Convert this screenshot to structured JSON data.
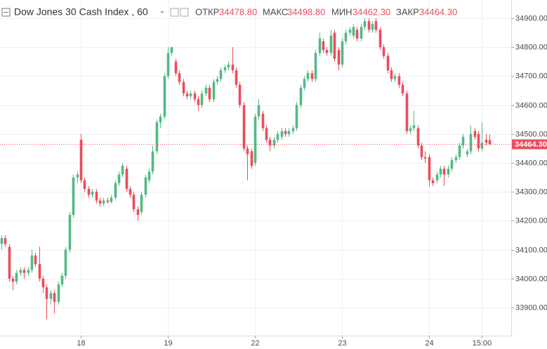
{
  "chart_data": {
    "type": "candlestick",
    "title": "Dow Jones 30 Cash Index , 60",
    "ohlc_legend": [
      {
        "label": "ОТКР",
        "value": "34478.80"
      },
      {
        "label": "МАКС",
        "value": "34498.80"
      },
      {
        "label": "МИН",
        "value": "34462.30"
      },
      {
        "label": "ЗАКР",
        "value": "34464.30"
      }
    ],
    "categories": [
      null,
      null,
      null,
      null,
      null,
      null,
      null,
      null,
      null,
      null,
      null,
      null,
      null,
      null,
      null,
      null,
      null,
      null,
      null,
      null,
      null,
      "18",
      null,
      null,
      null,
      null,
      null,
      null,
      null,
      null,
      null,
      null,
      null,
      null,
      null,
      null,
      null,
      null,
      null,
      null,
      null,
      null,
      null,
      null,
      "19",
      null,
      null,
      null,
      null,
      null,
      null,
      null,
      null,
      null,
      null,
      null,
      null,
      null,
      null,
      null,
      null,
      null,
      null,
      null,
      null,
      null,
      null,
      "22",
      null,
      null,
      null,
      null,
      null,
      null,
      null,
      null,
      null,
      null,
      null,
      null,
      null,
      null,
      null,
      null,
      null,
      null,
      null,
      null,
      null,
      null,
      "23",
      null,
      null,
      null,
      null,
      null,
      null,
      null,
      null,
      null,
      null,
      null,
      null,
      null,
      null,
      null,
      null,
      null,
      null,
      null,
      null,
      null,
      null,
      "24",
      null,
      null,
      null,
      null,
      null,
      null,
      null,
      null,
      null,
      null,
      null,
      null,
      null,
      "15:00",
      null,
      null
    ],
    "open": [
      34120,
      34140,
      34110,
      34000,
      33990,
      34020,
      34030,
      34020,
      34030,
      34080,
      34050,
      34000,
      33970,
      33930,
      33950,
      33920,
      33980,
      34010,
      34100,
      34220,
      34350,
      34480,
      34340,
      34310,
      34290,
      34300,
      34270,
      34260,
      34270,
      34265,
      34280,
      34330,
      34360,
      34380,
      34310,
      34290,
      34240,
      34230,
      34290,
      34340,
      34370,
      34440,
      34540,
      34560,
      34700,
      34780,
      34750,
      34710,
      34680,
      34640,
      34630,
      34640,
      34620,
      34600,
      34640,
      34660,
      34620,
      34680,
      34690,
      34720,
      34730,
      34740,
      34720,
      34670,
      34600,
      34450,
      34440,
      34400,
      34560,
      34570,
      34520,
      34480,
      34460,
      34480,
      34490,
      34510,
      34500,
      34510,
      34520,
      34600,
      34660,
      34690,
      34710,
      34690,
      34780,
      34820,
      34790,
      34780,
      34850,
      34790,
      34740,
      34820,
      34850,
      34840,
      34860,
      34830,
      34870,
      34890,
      34860,
      34890,
      34860,
      34800,
      34770,
      34720,
      34690,
      34700,
      34670,
      34640,
      34510,
      34520,
      34520,
      34460,
      34420,
      34420,
      34340,
      34340,
      34360,
      34380,
      34360,
      34380,
      34410,
      34420,
      34460,
      34430,
      34440,
      34510,
      34500,
      34450,
      34480,
      34478.8
    ],
    "high": [
      34150,
      34150,
      34120,
      34010,
      34030,
      34040,
      34040,
      34040,
      34100,
      34090,
      34110,
      34010,
      33980,
      33960,
      33960,
      33990,
      34020,
      34110,
      34230,
      34360,
      34370,
      34500,
      34350,
      34320,
      34310,
      34310,
      34280,
      34280,
      34280,
      34290,
      34340,
      34370,
      34400,
      34390,
      34320,
      34300,
      34250,
      34300,
      34360,
      34380,
      34460,
      34550,
      34570,
      34710,
      34800,
      34800,
      34760,
      34720,
      34690,
      34650,
      34650,
      34650,
      34630,
      34650,
      34670,
      34670,
      34690,
      34700,
      34730,
      34740,
      34750,
      34800,
      34730,
      34680,
      34610,
      34460,
      34450,
      34570,
      34620,
      34580,
      34530,
      34490,
      34490,
      34510,
      34520,
      34520,
      34520,
      34530,
      34610,
      34670,
      34700,
      34720,
      34720,
      34790,
      34850,
      34830,
      34800,
      34860,
      34860,
      34800,
      34830,
      34860,
      34870,
      34880,
      34870,
      34880,
      34900,
      34900,
      34890,
      34900,
      34870,
      34810,
      34780,
      34730,
      34710,
      34710,
      34680,
      34650,
      34530,
      34580,
      34530,
      34470,
      34440,
      34430,
      34350,
      34370,
      34390,
      34390,
      34390,
      34420,
      34430,
      34470,
      34500,
      34450,
      34530,
      34520,
      34510,
      34540,
      34500,
      34498.8
    ],
    "low": [
      34100,
      34110,
      33990,
      33960,
      33980,
      34010,
      34000,
      34010,
      34020,
      34040,
      33990,
      33950,
      33860,
      33910,
      33880,
      33910,
      33970,
      34000,
      34090,
      34210,
      34330,
      34330,
      34300,
      34280,
      34280,
      34260,
      34250,
      34250,
      34260,
      34260,
      34270,
      34320,
      34350,
      34300,
      34280,
      34230,
      34200,
      34220,
      34280,
      34330,
      34360,
      34430,
      34520,
      34550,
      34690,
      34770,
      34700,
      34670,
      34630,
      34620,
      34620,
      34610,
      34580,
      34590,
      34630,
      34610,
      34610,
      34670,
      34680,
      34710,
      34720,
      34710,
      34660,
      34590,
      34440,
      34340,
      34380,
      34390,
      34550,
      34510,
      34470,
      34440,
      34450,
      34470,
      34480,
      34490,
      34490,
      34500,
      34510,
      34590,
      34650,
      34680,
      34680,
      34680,
      34770,
      34780,
      34770,
      34770,
      34750,
      34720,
      34730,
      34810,
      34840,
      34830,
      34820,
      34820,
      34860,
      34850,
      34850,
      34850,
      34790,
      34760,
      34710,
      34680,
      34680,
      34660,
      34630,
      34500,
      34500,
      34510,
      34450,
      34410,
      34400,
      34320,
      34320,
      34330,
      34350,
      34320,
      34350,
      34370,
      34400,
      34410,
      34450,
      34420,
      34430,
      34480,
      34440,
      34440,
      34460,
      34462.3
    ],
    "close": [
      34140,
      34120,
      34000,
      33990,
      34020,
      34030,
      34020,
      34030,
      34080,
      34050,
      34000,
      33970,
      33930,
      33950,
      33920,
      33980,
      34010,
      34100,
      34220,
      34350,
      34360,
      34340,
      34310,
      34290,
      34300,
      34270,
      34260,
      34270,
      34265,
      34280,
      34330,
      34360,
      34390,
      34310,
      34290,
      34240,
      34220,
      34290,
      34350,
      34370,
      34440,
      34540,
      34560,
      34700,
      34780,
      34800,
      34710,
      34680,
      34640,
      34630,
      34640,
      34620,
      34600,
      34640,
      34660,
      34620,
      34680,
      34690,
      34720,
      34730,
      34740,
      34720,
      34670,
      34600,
      34450,
      34430,
      34390,
      34560,
      34600,
      34520,
      34480,
      34460,
      34480,
      34500,
      34510,
      34500,
      34510,
      34520,
      34600,
      34660,
      34690,
      34710,
      34690,
      34780,
      34830,
      34790,
      34780,
      34840,
      34760,
      34740,
      34820,
      34850,
      34860,
      34870,
      34830,
      34870,
      34890,
      34860,
      34880,
      34860,
      34800,
      34770,
      34720,
      34690,
      34700,
      34670,
      34640,
      34510,
      34520,
      34530,
      34460,
      34420,
      34415,
      34340,
      34330,
      34360,
      34380,
      34360,
      34380,
      34410,
      34420,
      34460,
      34490,
      34440,
      34500,
      34490,
      34450,
      34470,
      34470,
      34464.3
    ],
    "up_color": "#53b987",
    "down_color": "#eb4d5c",
    "ylim": [
      33803,
      34963
    ],
    "yticks": [
      {
        "value": 33900,
        "label": "33900.00"
      },
      {
        "value": 34000,
        "label": "34000.00"
      },
      {
        "value": 34100,
        "label": "34100.00"
      },
      {
        "value": 34200,
        "label": "34200.00"
      },
      {
        "value": 34300,
        "label": "34300.00"
      },
      {
        "value": 34400,
        "label": "34400.00"
      },
      {
        "value": 34500,
        "label": "34500.00"
      },
      {
        "value": 34600,
        "label": "34600.00"
      },
      {
        "value": 34700,
        "label": "34700.00"
      },
      {
        "value": 34800,
        "label": "34800.00"
      },
      {
        "value": 34900,
        "label": "34900.00"
      }
    ],
    "last_price": {
      "value": 34464.3,
      "label": "34464.30",
      "color": "#eb4d5c"
    },
    "grid": true
  }
}
